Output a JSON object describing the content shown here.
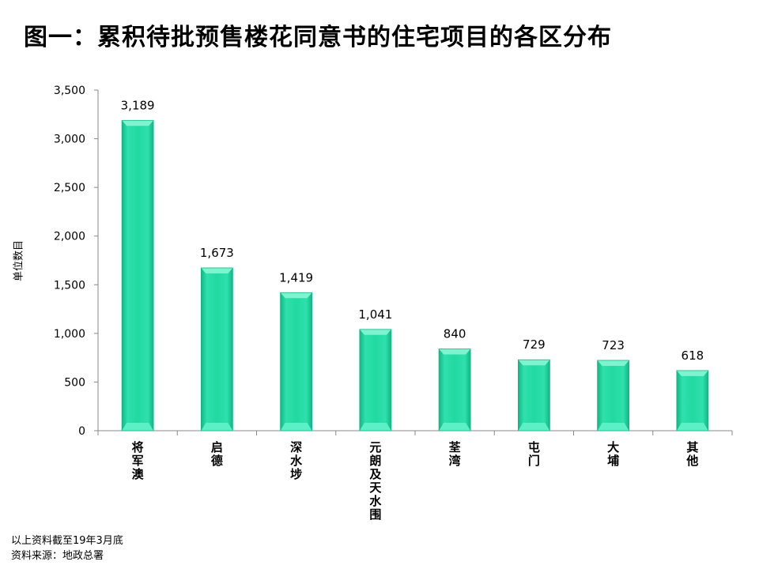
{
  "title": "图一：累积待批预售楼花同意书的住宅项目的各区分布",
  "chart_data": {
    "type": "bar",
    "ylabel": "单位数目",
    "ylim": [
      0,
      3500
    ],
    "yticks": [
      0,
      500,
      1000,
      1500,
      2000,
      2500,
      3000,
      3500
    ],
    "ytick_labels": [
      "0",
      "500",
      "1,000",
      "1,500",
      "2,000",
      "2,500",
      "3,000",
      "3,500"
    ],
    "categories": [
      "将军澳",
      "启德",
      "深水埗",
      "元朗及天水围",
      "荃湾",
      "屯门",
      "大埔",
      "其他"
    ],
    "values": [
      3189,
      1673,
      1419,
      1041,
      840,
      729,
      723,
      618
    ],
    "value_labels": [
      "3,189",
      "1,673",
      "1,419",
      "1,041",
      "840",
      "729",
      "723",
      "618"
    ],
    "bar_color": "#1ed8a0",
    "grid": false,
    "legend": "none"
  },
  "footnotes": {
    "as_of": "以上资料截至19年3月底",
    "source": "资料来源：地政总署"
  }
}
